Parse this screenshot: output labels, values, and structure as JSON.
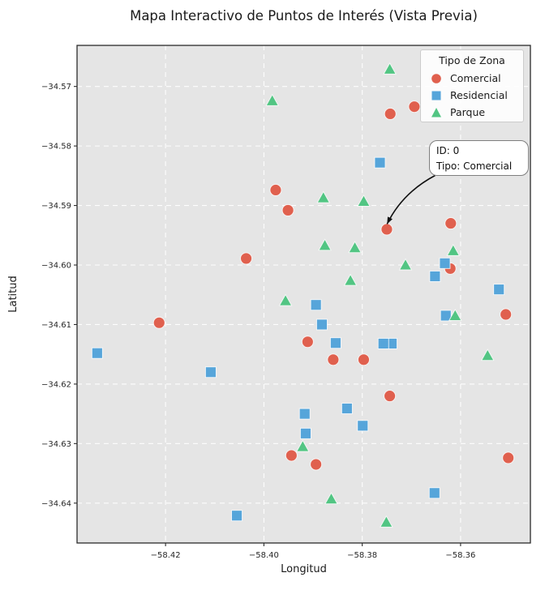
{
  "style": {
    "plot_bg": "#e5e5e5",
    "grid_color": "#ffffff",
    "frame_color": "#2b2b2b",
    "text_color": "#1a1a1a",
    "arrow_color": "#111111"
  },
  "chart_data": {
    "type": "scatter",
    "title": "Mapa Interactivo de Puntos de Interés (Vista Previa)",
    "xlabel": "Longitud",
    "ylabel": "Latitud",
    "xlim": [
      -58.438,
      -58.3458
    ],
    "ylim": [
      -34.6467,
      -34.5631
    ],
    "grid": true,
    "grid_style": "white dashed on light-gray panel",
    "xticks": {
      "values": [
        -58.42,
        -58.4,
        -58.38,
        -58.36
      ],
      "labels": [
        "−58.42",
        "−58.40",
        "−58.38",
        "−58.36"
      ]
    },
    "yticks": {
      "values": [
        -34.57,
        -34.58,
        -34.59,
        -34.6,
        -34.61,
        -34.62,
        -34.63,
        -34.64
      ],
      "labels": [
        "−34.57",
        "−34.58",
        "−34.59",
        "−34.60",
        "−34.61",
        "−34.62",
        "−34.63",
        "−34.64"
      ]
    },
    "legend": {
      "title": "Tipo de Zona",
      "position": "upper right",
      "entries": [
        {
          "label": "Comercial",
          "marker": "circle",
          "color": "#e0604e"
        },
        {
          "label": "Residencial",
          "marker": "square",
          "color": "#56a5da"
        },
        {
          "label": "Parque",
          "marker": "triangle",
          "color": "#52c583"
        }
      ]
    },
    "annotation": {
      "lines": [
        "ID: 0",
        "Tipo: Comercial"
      ],
      "target": [
        -58.375,
        -34.594
      ]
    },
    "series": [
      {
        "name": "Comercial",
        "marker": "circle",
        "color": "#e0604e",
        "points": [
          [
            -58.3976,
            -34.5874
          ],
          [
            -58.3951,
            -34.5908
          ],
          [
            -58.4036,
            -34.5989
          ],
          [
            -58.4213,
            -34.6097
          ],
          [
            -58.3743,
            -34.5746
          ],
          [
            -58.3694,
            -34.5734
          ],
          [
            -58.375,
            -34.594
          ],
          [
            -58.362,
            -34.593
          ],
          [
            -58.3621,
            -34.6006
          ],
          [
            -58.3508,
            -34.6083
          ],
          [
            -58.3911,
            -34.6129
          ],
          [
            -58.3859,
            -34.6159
          ],
          [
            -58.3797,
            -34.6159
          ],
          [
            -58.3944,
            -34.632
          ],
          [
            -58.3894,
            -34.6335
          ],
          [
            -58.3744,
            -34.622
          ],
          [
            -58.3503,
            -34.6324
          ]
        ]
      },
      {
        "name": "Residencial",
        "marker": "square",
        "color": "#56a5da",
        "points": [
          [
            -58.4339,
            -34.6148
          ],
          [
            -58.4108,
            -34.618
          ],
          [
            -58.3764,
            -34.5828
          ],
          [
            -58.3632,
            -34.5997
          ],
          [
            -58.3652,
            -34.6019
          ],
          [
            -58.3522,
            -34.6041
          ],
          [
            -58.3894,
            -34.6067
          ],
          [
            -58.3882,
            -34.61
          ],
          [
            -58.363,
            -34.6085
          ],
          [
            -58.3854,
            -34.6131
          ],
          [
            -58.374,
            -34.6132
          ],
          [
            -58.3757,
            -34.6132
          ],
          [
            -58.3917,
            -34.625
          ],
          [
            -58.3831,
            -34.6241
          ],
          [
            -58.3915,
            -34.6283
          ],
          [
            -58.3799,
            -34.627
          ],
          [
            -58.3653,
            -34.6383
          ],
          [
            -58.4055,
            -34.6421
          ]
        ]
      },
      {
        "name": "Parque",
        "marker": "triangle",
        "color": "#52c583",
        "points": [
          [
            -58.3983,
            -34.5724
          ],
          [
            -58.3744,
            -34.5671
          ],
          [
            -58.3879,
            -34.5887
          ],
          [
            -58.3797,
            -34.5893
          ],
          [
            -58.3876,
            -34.5967
          ],
          [
            -58.3815,
            -34.5971
          ],
          [
            -58.3615,
            -34.5976
          ],
          [
            -58.3712,
            -34.6
          ],
          [
            -58.3824,
            -34.6026
          ],
          [
            -58.3956,
            -34.606
          ],
          [
            -58.3611,
            -34.6085
          ],
          [
            -58.3545,
            -34.6152
          ],
          [
            -58.3921,
            -34.6305
          ],
          [
            -58.3863,
            -34.6393
          ],
          [
            -58.3751,
            -34.6432
          ]
        ]
      }
    ]
  }
}
